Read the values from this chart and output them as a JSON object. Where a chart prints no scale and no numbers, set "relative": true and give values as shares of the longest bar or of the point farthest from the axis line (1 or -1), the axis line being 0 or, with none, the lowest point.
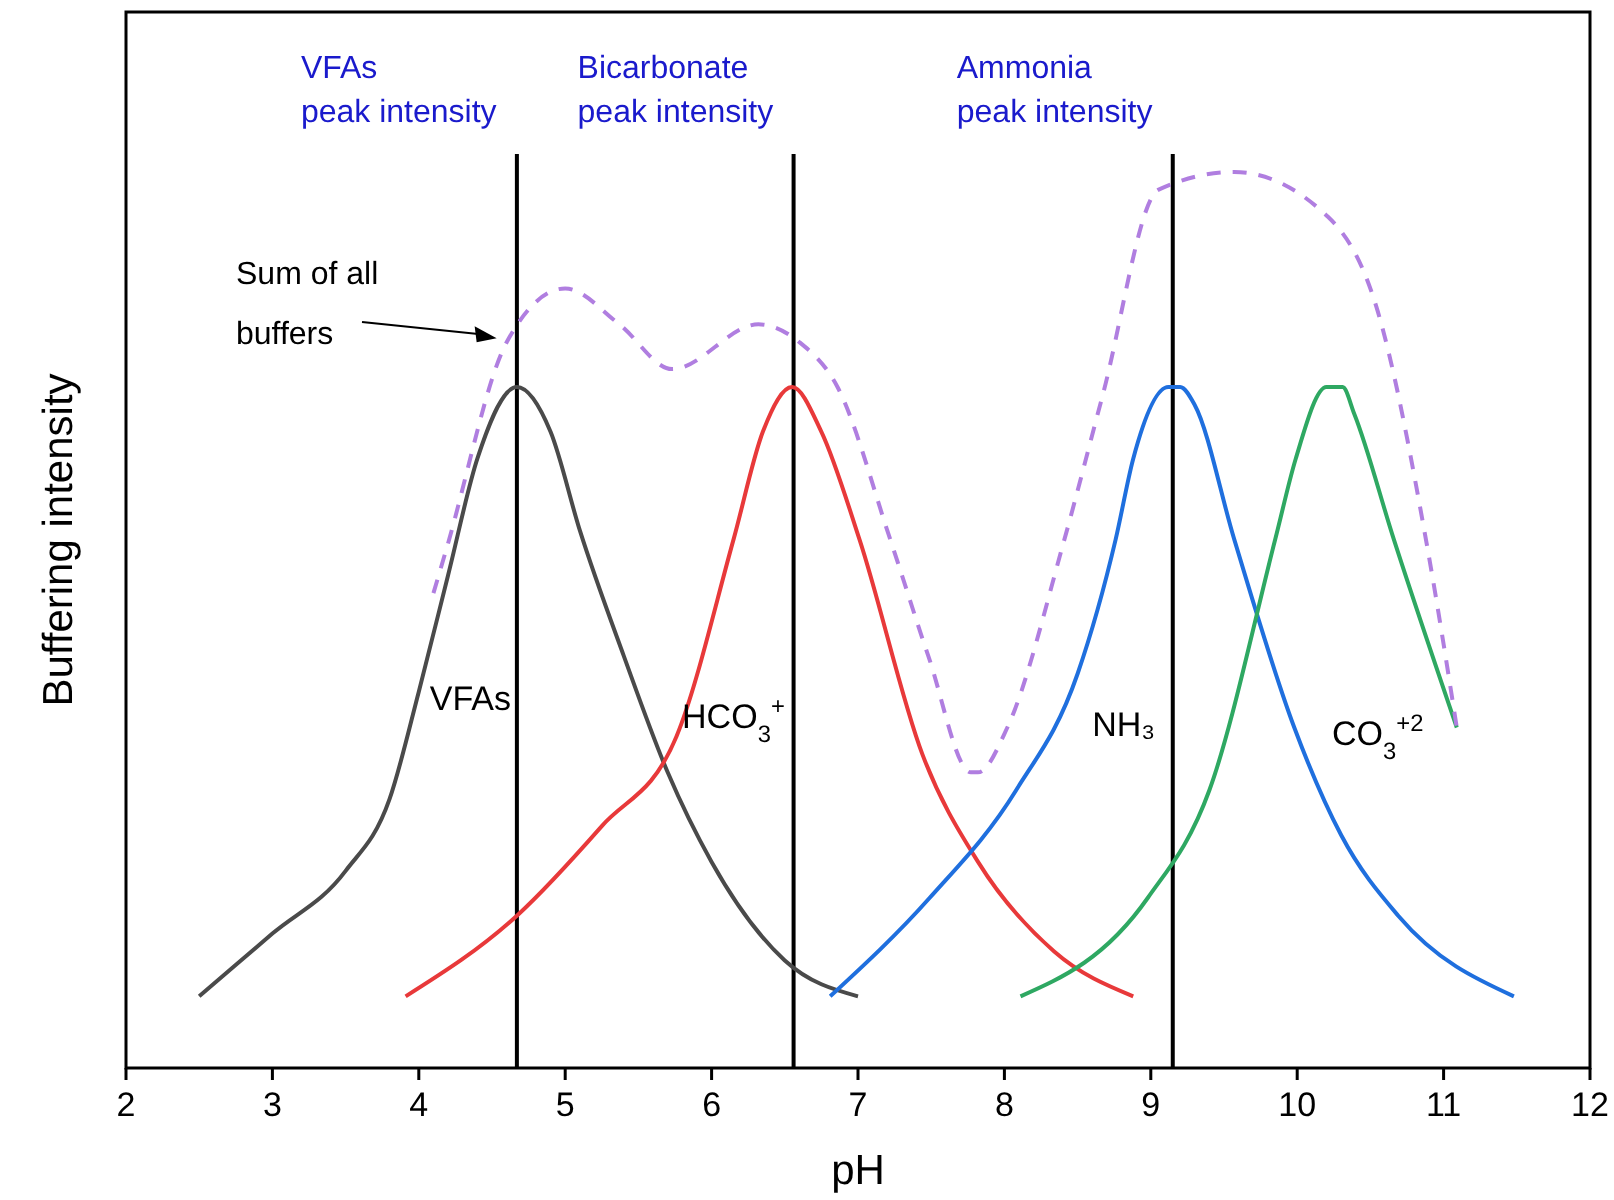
{
  "chart_data": {
    "type": "line",
    "relative": true,
    "xlabel": "pH",
    "ylabel": "Buffering intensity",
    "xlim": [
      2,
      12
    ],
    "xticks": [
      2,
      3,
      4,
      5,
      6,
      7,
      8,
      9,
      10,
      11,
      12
    ],
    "grid": false,
    "marker": "none",
    "series": [
      {
        "name": "VFAs",
        "color": "#4a4a4a",
        "x": [
          2.5,
          3.0,
          3.5,
          3.8,
          4.0,
          4.2,
          4.4,
          4.67,
          4.9,
          5.1,
          5.4,
          5.7,
          6.0,
          6.5,
          7.0
        ],
        "values": [
          0.08,
          0.15,
          0.22,
          0.3,
          0.42,
          0.55,
          0.68,
          0.76,
          0.71,
          0.6,
          0.46,
          0.33,
          0.23,
          0.12,
          0.08
        ]
      },
      {
        "name": "HCO$_{3}$$^{+}$",
        "color": "#e8393a",
        "x": [
          3.91,
          4.67,
          5.25,
          5.76,
          6.15,
          6.35,
          6.55,
          6.75,
          7.01,
          7.44,
          7.82,
          8.34,
          8.88
        ],
        "values": [
          0.08,
          0.17,
          0.27,
          0.37,
          0.59,
          0.71,
          0.76,
          0.71,
          0.59,
          0.35,
          0.23,
          0.13,
          0.08
        ]
      },
      {
        "name": "NH₃",
        "color": "#1f6fde",
        "x": [
          6.81,
          7.49,
          8.08,
          8.5,
          8.76,
          8.88,
          9.12,
          9.2,
          9.3,
          9.57,
          9.98,
          10.3,
          10.69,
          11.48
        ],
        "values": [
          0.08,
          0.19,
          0.31,
          0.44,
          0.59,
          0.68,
          0.76,
          0.76,
          0.74,
          0.59,
          0.38,
          0.26,
          0.17,
          0.08
        ]
      },
      {
        "name": "CO$_{3}$$^{+2}$",
        "color": "#2ea862",
        "x": [
          8.11,
          8.98,
          9.4,
          9.85,
          9.99,
          10.2,
          10.31,
          10.39,
          10.66,
          11.09
        ],
        "values": [
          0.08,
          0.19,
          0.31,
          0.59,
          0.68,
          0.76,
          0.76,
          0.73,
          0.59,
          0.38
        ]
      },
      {
        "name": "Sum of all buffers",
        "color": "#b07ee0",
        "line_style": "dashed",
        "x": [
          4.1,
          4.19,
          4.6,
          5.0,
          5.37,
          5.73,
          6.32,
          6.6,
          6.86,
          7.22,
          7.48,
          7.77,
          7.82,
          8.02,
          8.41,
          8.67,
          9.05,
          9.57,
          10.21,
          10.54,
          10.89,
          11.09
        ],
        "values": [
          0.53,
          0.58,
          0.81,
          0.87,
          0.83,
          0.78,
          0.83,
          0.81,
          0.76,
          0.59,
          0.46,
          0.33,
          0.33,
          0.38,
          0.59,
          0.75,
          0.98,
          1.0,
          0.95,
          0.85,
          0.58,
          0.38
        ]
      }
    ],
    "ref_lines": [
      {
        "axis": "x",
        "value": 4.67,
        "label": "VFAs peak intensity",
        "color": "#000000"
      },
      {
        "axis": "x",
        "value": 6.56,
        "label": "Bicarbonate peak intensity",
        "color": "#000000"
      },
      {
        "axis": "x",
        "value": 9.15,
        "label": "Ammonia peak intensity",
        "color": "#000000"
      }
    ]
  }
}
